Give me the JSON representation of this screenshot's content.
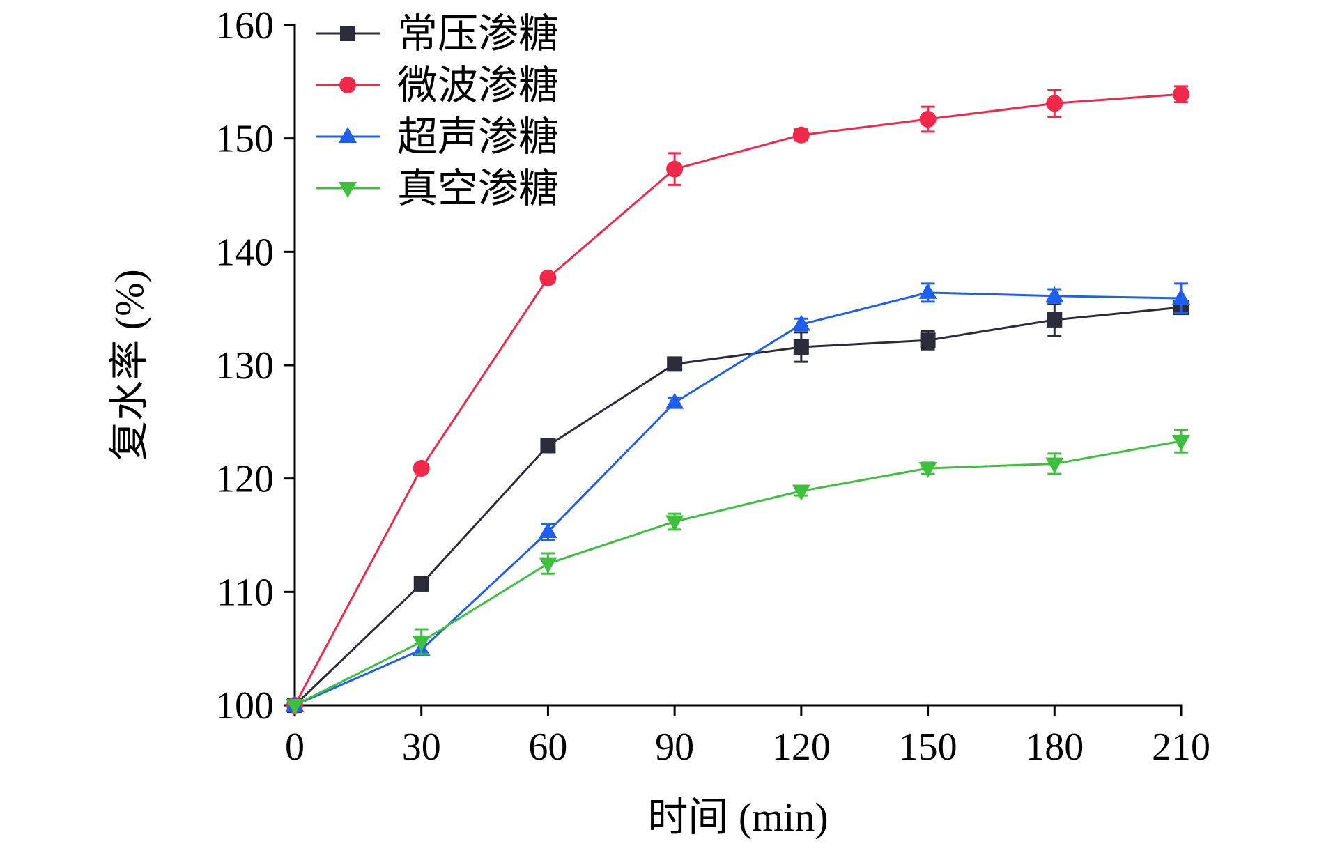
{
  "chart_data": {
    "type": "line",
    "xlabel": "时间 (min)",
    "ylabel": "复水率 (%)",
    "xlim": [
      0,
      210
    ],
    "ylim": [
      100,
      160
    ],
    "x_ticks": [
      0,
      30,
      60,
      90,
      120,
      150,
      180,
      210
    ],
    "y_ticks": [
      100,
      110,
      120,
      130,
      140,
      150,
      160
    ],
    "grid": false,
    "legend_position": "top-left",
    "x": [
      0,
      30,
      60,
      90,
      120,
      150,
      180,
      210
    ],
    "series": [
      {
        "name": "常压渗糖",
        "color": "#2b2b3a",
        "marker": "square",
        "values": [
          100.0,
          110.7,
          122.9,
          130.1,
          131.6,
          132.2,
          134.0,
          135.1
        ],
        "errors": [
          0.0,
          0.4,
          0.4,
          0.5,
          1.3,
          0.8,
          1.4,
          0.4
        ]
      },
      {
        "name": "微波渗糖",
        "color": "#f0284a",
        "marker": "circle",
        "values": [
          100.0,
          120.9,
          137.7,
          147.3,
          150.3,
          151.7,
          153.1,
          153.9
        ],
        "errors": [
          0.0,
          0.3,
          0.4,
          1.4,
          0.5,
          1.1,
          1.2,
          0.7
        ]
      },
      {
        "name": "超声渗糖",
        "color": "#1f5ff0",
        "marker": "triangle-up",
        "values": [
          100.0,
          104.9,
          115.3,
          126.7,
          133.6,
          136.4,
          136.1,
          135.9
        ],
        "errors": [
          0.0,
          0.5,
          0.7,
          0.4,
          0.5,
          0.8,
          0.6,
          1.3
        ]
      },
      {
        "name": "真空渗糖",
        "color": "#3fbf3f",
        "marker": "triangle-down",
        "values": [
          100.0,
          105.6,
          112.5,
          116.2,
          118.9,
          120.9,
          121.3,
          123.3
        ],
        "errors": [
          0.0,
          1.1,
          0.9,
          0.7,
          0.4,
          0.5,
          0.9,
          1.0
        ]
      }
    ]
  }
}
